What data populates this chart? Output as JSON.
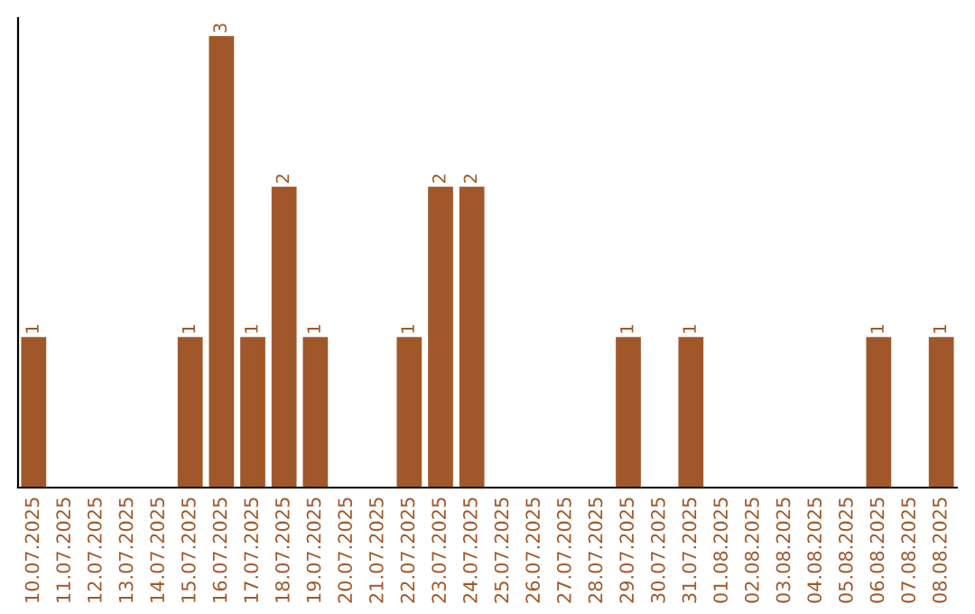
{
  "chart_data": {
    "type": "bar",
    "categories": [
      "10.07.2025",
      "11.07.2025",
      "12.07.2025",
      "13.07.2025",
      "14.07.2025",
      "15.07.2025",
      "16.07.2025",
      "17.07.2025",
      "18.07.2025",
      "19.07.2025",
      "20.07.2025",
      "21.07.2025",
      "22.07.2025",
      "23.07.2025",
      "24.07.2025",
      "25.07.2025",
      "26.07.2025",
      "27.07.2025",
      "28.07.2025",
      "29.07.2025",
      "30.07.2025",
      "31.07.2025",
      "01.08.2025",
      "02.08.2025",
      "03.08.2025",
      "04.08.2025",
      "05.08.2025",
      "06.08.2025",
      "07.08.2025",
      "08.08.2025"
    ],
    "values": [
      1,
      0,
      0,
      0,
      0,
      1,
      3,
      1,
      2,
      1,
      0,
      0,
      1,
      2,
      2,
      0,
      0,
      0,
      0,
      1,
      0,
      1,
      0,
      0,
      0,
      0,
      0,
      1,
      0,
      1
    ],
    "value_labels": [
      "1",
      null,
      null,
      null,
      null,
      "1",
      "3",
      "1",
      "2",
      "1",
      null,
      null,
      "1",
      "2",
      "2",
      null,
      null,
      null,
      null,
      "1",
      null,
      "1",
      null,
      null,
      null,
      null,
      null,
      "1",
      null,
      "1"
    ],
    "color": "#a0582a",
    "tick_labels": "x",
    "grid": false
  }
}
